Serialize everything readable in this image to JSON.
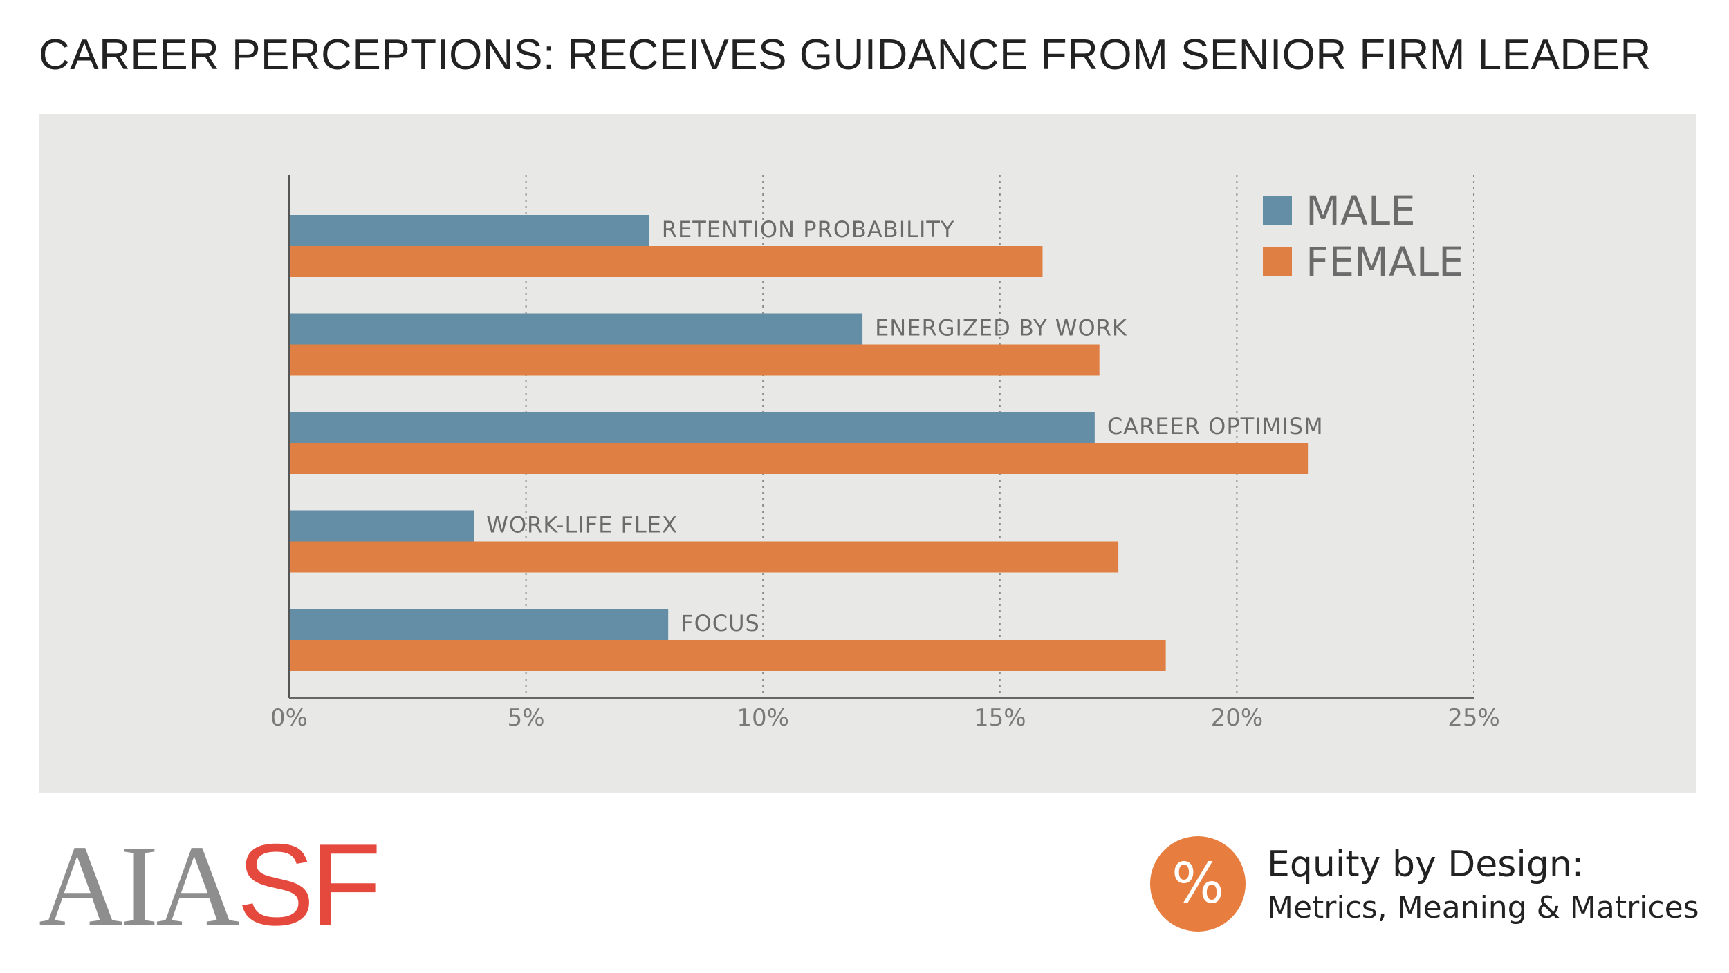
{
  "header": {
    "title": "CAREER PERCEPTIONS: RECEIVES GUIDANCE FROM SENIOR FIRM LEADER"
  },
  "colors": {
    "male": "#638ea6",
    "female": "#df7f43",
    "panel": "#e8e8e7",
    "logo_gray": "#8e8e8e",
    "logo_red": "#e5483c",
    "badge": "#e87d40"
  },
  "chart_data": {
    "type": "bar",
    "orientation": "horizontal",
    "categories": [
      "RETENTION PROBABILITY",
      "ENERGIZED BY WORK",
      "CAREER OPTIMISM",
      "WORK-LIFE FLEX",
      "FOCUS"
    ],
    "series": [
      {
        "name": "MALE",
        "values": [
          7.6,
          12.1,
          17.0,
          3.9,
          8.0
        ]
      },
      {
        "name": "FEMALE",
        "values": [
          15.9,
          17.1,
          21.5,
          17.5,
          18.5
        ]
      }
    ],
    "x_ticks": [
      "0%",
      "5%",
      "10%",
      "15%",
      "20%",
      "25%"
    ],
    "xlim": [
      0,
      25
    ],
    "grid": "vertical dotted",
    "legend_position": "top-right"
  },
  "footer": {
    "logo_gray": "AIA",
    "logo_red": "SF",
    "badge_symbol": "%",
    "brand_line1": "Equity by Design:",
    "brand_line2": "Metrics, Meaning & Matrices"
  }
}
